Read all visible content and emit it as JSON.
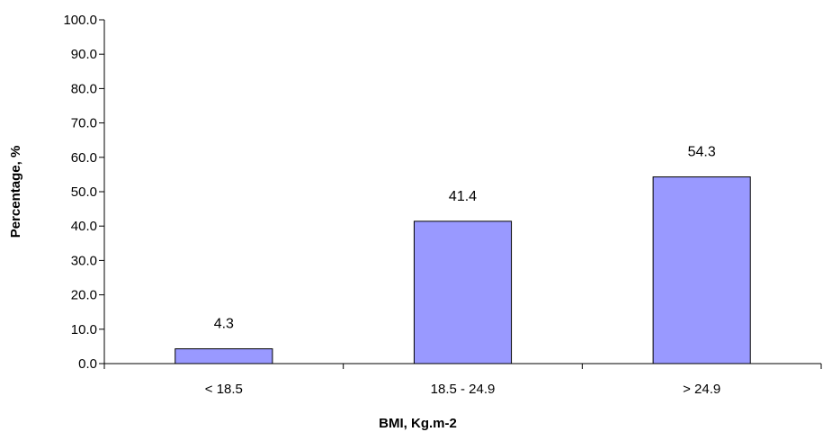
{
  "chart_data": {
    "type": "bar",
    "title": "",
    "xlabel": "BMI, Kg.m-2",
    "ylabel": "Percentage, %",
    "categories": [
      "< 18.5",
      "18.5 - 24.9",
      "> 24.9"
    ],
    "values": [
      4.3,
      41.4,
      54.3
    ],
    "value_labels": [
      "4.3",
      "41.4",
      "54.3"
    ],
    "ylim": [
      0,
      100
    ],
    "yticks": [
      0,
      10,
      20,
      30,
      40,
      50,
      60,
      70,
      80,
      90,
      100
    ],
    "ytick_labels": [
      "0.0",
      "10.0",
      "20.0",
      "30.0",
      "40.0",
      "50.0",
      "60.0",
      "70.0",
      "80.0",
      "90.0",
      "100.0"
    ],
    "grid": false,
    "legend": "none",
    "bar_color": "#9999ff",
    "bar_edge_color": "#000000"
  }
}
